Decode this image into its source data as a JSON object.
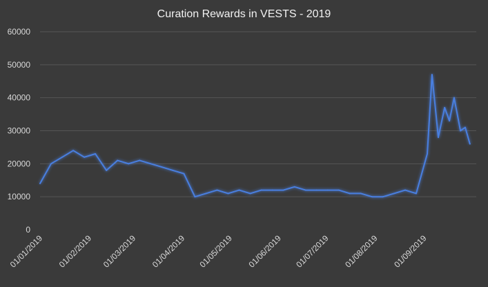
{
  "chart_data": {
    "type": "line",
    "title": "Curation Rewards in VESTS - 2019",
    "xlabel": "",
    "ylabel": "",
    "ylim": [
      0,
      60000
    ],
    "yticks": [
      0,
      10000,
      20000,
      30000,
      40000,
      50000,
      60000
    ],
    "xtick_labels": [
      "01/01/2019",
      "01/02/2019",
      "01/03/2019",
      "01/04/2019",
      "01/05/2019",
      "01/06/2019",
      "01/07/2019",
      "01/08/2019",
      "01/09/2019"
    ],
    "grid": true,
    "legend": "none",
    "line_color": "#4a7fe0",
    "series": [
      {
        "x": [
          "2019-01-01",
          "2019-01-08",
          "2019-01-15",
          "2019-01-22",
          "2019-01-29",
          "2019-02-05",
          "2019-02-12",
          "2019-02-19",
          "2019-02-26",
          "2019-03-05",
          "2019-03-12",
          "2019-03-19",
          "2019-03-26",
          "2019-04-02",
          "2019-04-09",
          "2019-04-16",
          "2019-04-23",
          "2019-04-30",
          "2019-05-07",
          "2019-05-14",
          "2019-05-21",
          "2019-05-28",
          "2019-06-04",
          "2019-06-11",
          "2019-06-18",
          "2019-06-25",
          "2019-07-02",
          "2019-07-09",
          "2019-07-16",
          "2019-07-23",
          "2019-07-30",
          "2019-08-06",
          "2019-08-13",
          "2019-08-20",
          "2019-08-27",
          "2019-09-03",
          "2019-09-06",
          "2019-09-10",
          "2019-09-14",
          "2019-09-17",
          "2019-09-20",
          "2019-09-24",
          "2019-09-27",
          "2019-09-30"
        ],
        "values": [
          14000,
          20000,
          22000,
          24000,
          22000,
          23000,
          18000,
          21000,
          20000,
          21000,
          20000,
          19000,
          18000,
          17000,
          10000,
          11000,
          12000,
          11000,
          12000,
          11000,
          12000,
          12000,
          12000,
          13000,
          12000,
          12000,
          12000,
          12000,
          11000,
          11000,
          10000,
          10000,
          11000,
          12000,
          11000,
          23000,
          47000,
          28000,
          37000,
          33000,
          40000,
          30000,
          31000,
          26000
        ]
      }
    ]
  }
}
